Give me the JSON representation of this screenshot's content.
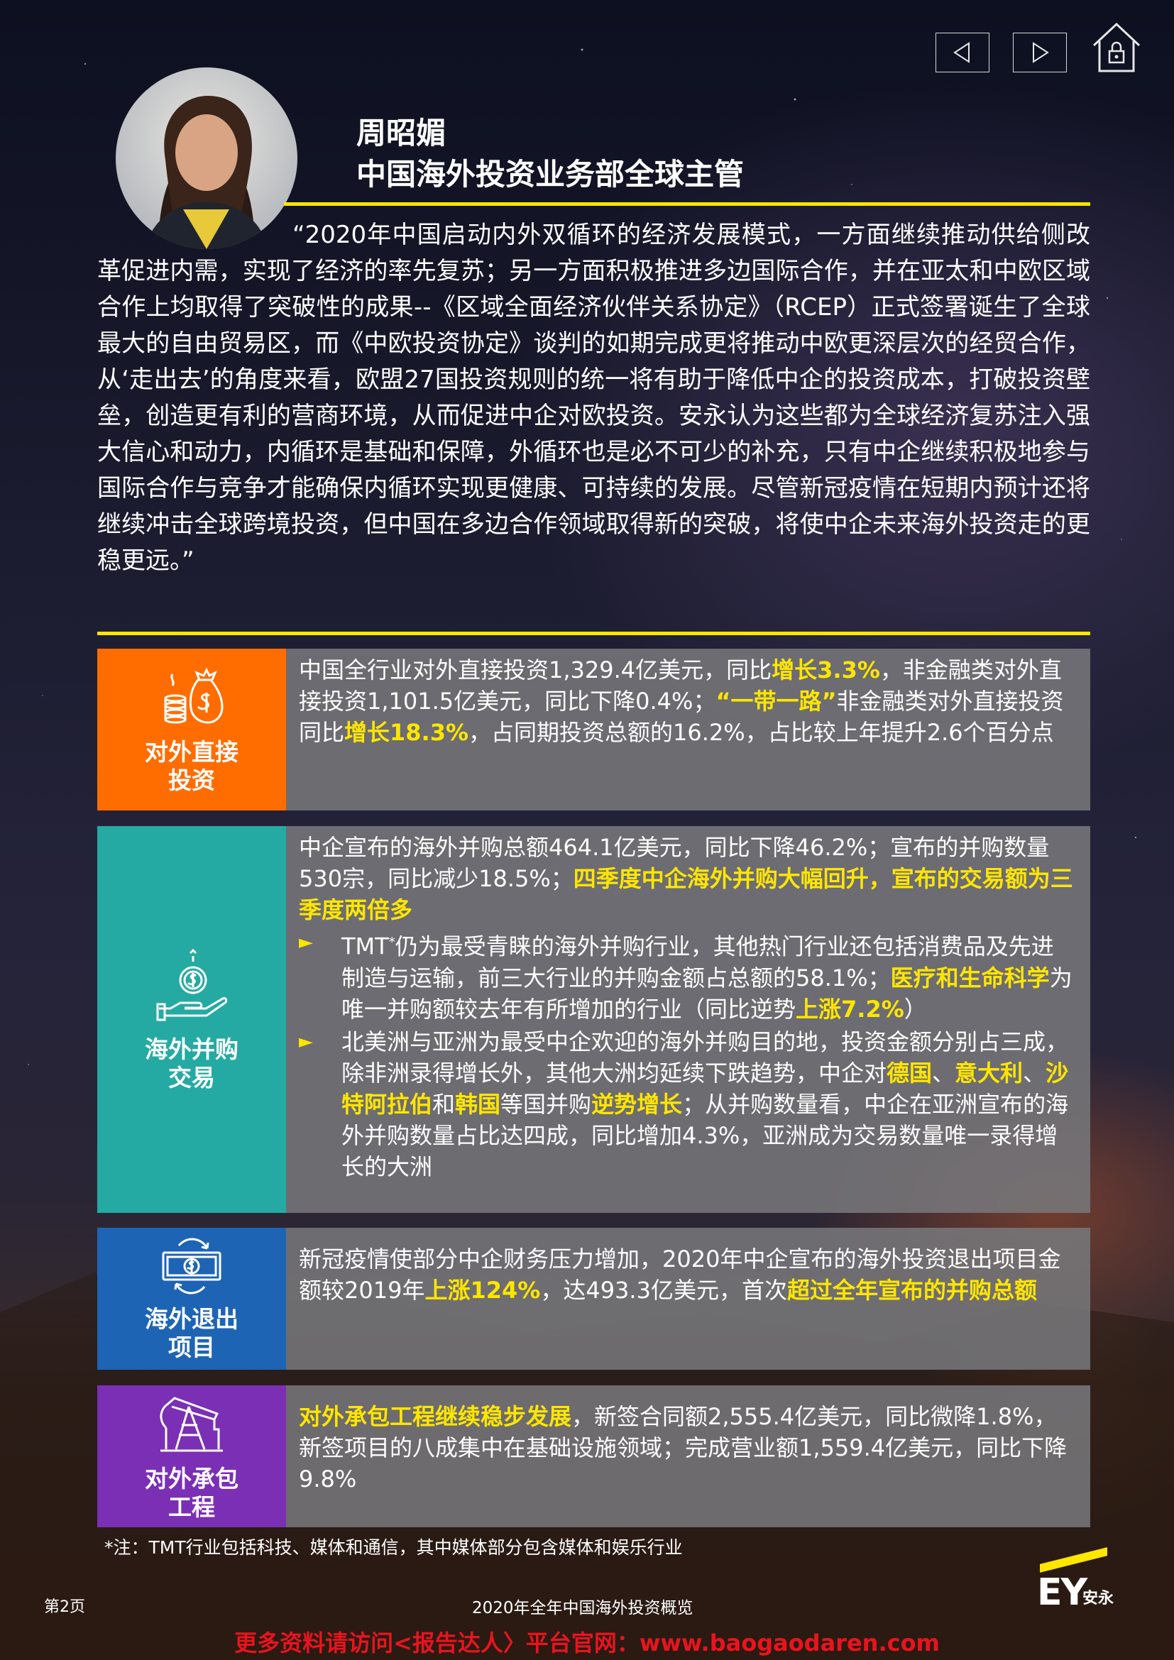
{
  "nav": {
    "prev_label": "◁",
    "next_label": "▷"
  },
  "person": {
    "name": "周昭媚",
    "title": "中国海外投资业务部全球主管"
  },
  "quote": "“2020年中国启动内外双循环的经济发展模式，一方面继续推动供给侧改革促进内需，实现了经济的率先复苏；另一方面积极推进多边国际合作，并在亚太和中欧区域合作上均取得了突破性的成果--《区域全面经济伙伴关系协定》（RCEP）正式签署诞生了全球最大的自由贸易区，而《中欧投资协定》谈判的如期完成更将推动中欧更深层次的经贸合作，从‘走出去’的角度来看，欧盟27国投资规则的统一将有助于降低中企的投资成本，打破投资壁垒，创造更有利的营商环境，从而促进中企对欧投资。安永认为这些都为全球经济复苏注入强大信心和动力，内循环是基础和保障，外循环也是必不可少的补充，只有中企继续积极地参与国际合作与竞争才能确保内循环实现更健康、可持续的发展。尽管新冠疫情在短期内预计还将继续冲击全球跨境投资，但中国在多边合作领域取得新的突破，将使中企未来海外投资走的更稳更远。”",
  "cards": {
    "fdi": {
      "label": "对外直接投资",
      "t1": "中国全行业对外直接投资1,329.4亿美元，同比",
      "h1": "增长3.3%",
      "t2": "，非金融类对外直接投资1,101.5亿美元，同比下降0.4%；",
      "h2": "“一带一路”",
      "t3": "非金融类对外直接投资同比",
      "h3": "增长18.3%",
      "t4": "，占同期投资总额的16.2%，占比较上年提升2.6个百分点"
    },
    "ma": {
      "label": "海外并购交易",
      "t1": "中企宣布的海外并购总额464.1亿美元，同比下降46.2%；宣布的并购数量530宗，同比减少18.5%；",
      "h1": "四季度中企海外并购大幅回升，宣布的交易额为三季度两倍多",
      "bullet_mark": "►",
      "b1_t1": "TMT",
      "b1_sup": "*",
      "b1_t2": "仍为最受青睐的海外并购行业，其他热门行业还包括消费品及先进制造与运输，前三大行业的并购金额占总额的58.1%；",
      "b1_h1": "医疗和生命科学",
      "b1_t3": "为唯一并购额较去年有所增加的行业（同比逆势",
      "b1_h2": "上涨7.2%",
      "b1_t4": "）",
      "b2_t1": "北美洲与亚洲为最受中企欢迎的海外并购目的地，投资金额分别占三成，除非洲录得增长外，其他大洲均延续下跌趋势，中企对",
      "b2_h1": "德国",
      "b2_s1": "、",
      "b2_h2": "意大利",
      "b2_s2": "、",
      "b2_h3": "沙特阿拉伯",
      "b2_s3": "和",
      "b2_h4": "韩国",
      "b2_t2": "等国并购",
      "b2_h5": "逆势增长",
      "b2_t3": "；从并购数量看，中企在亚洲宣布的海外并购数量占比达四成，同比增加4.3%，亚洲成为交易数量唯一录得增长的大洲"
    },
    "exit": {
      "label": "海外退出项目",
      "t1": "新冠疫情使部分中企财务压力增加，2020年中企宣布的海外投资退出项目金额较2019年",
      "h1": "上涨124%",
      "t2": "，达493.3亿美元，首次",
      "h2": "超过全年宣布的并购总额"
    },
    "epc": {
      "label": "对外承包工程",
      "h1": "对外承包工程继续稳步发展",
      "t1": "，新签合同额2,555.4亿美元，同比微降1.8%，新签项目的八成集中在基础设施领域；完成营业额1,559.4亿美元，同比下降9.8%"
    }
  },
  "footnote": "*注：TMT行业包括科技、媒体和通信，其中媒体部分包含媒体和娱乐行业",
  "footer": {
    "page": "第2页",
    "title": "2020年全年中国海外投资概览",
    "logo_text": "EY",
    "logo_cn": "安永",
    "promo": "更多资料请访问<报告达人〉平台官网：www.baogaodaren.com"
  },
  "colors": {
    "accent_yellow": "#ffe600",
    "fdi": "#ff6d00",
    "ma": "#25aaa3",
    "exit": "#1e64b4",
    "epc": "#7b2fb5",
    "promo_red": "#e8141e"
  },
  "icons": [
    "back-arrow-icon",
    "forward-arrow-icon",
    "home-lock-icon",
    "money-bag-coins-icon",
    "hand-coin-icon",
    "banknote-exchange-icon",
    "oil-pump-icon"
  ]
}
